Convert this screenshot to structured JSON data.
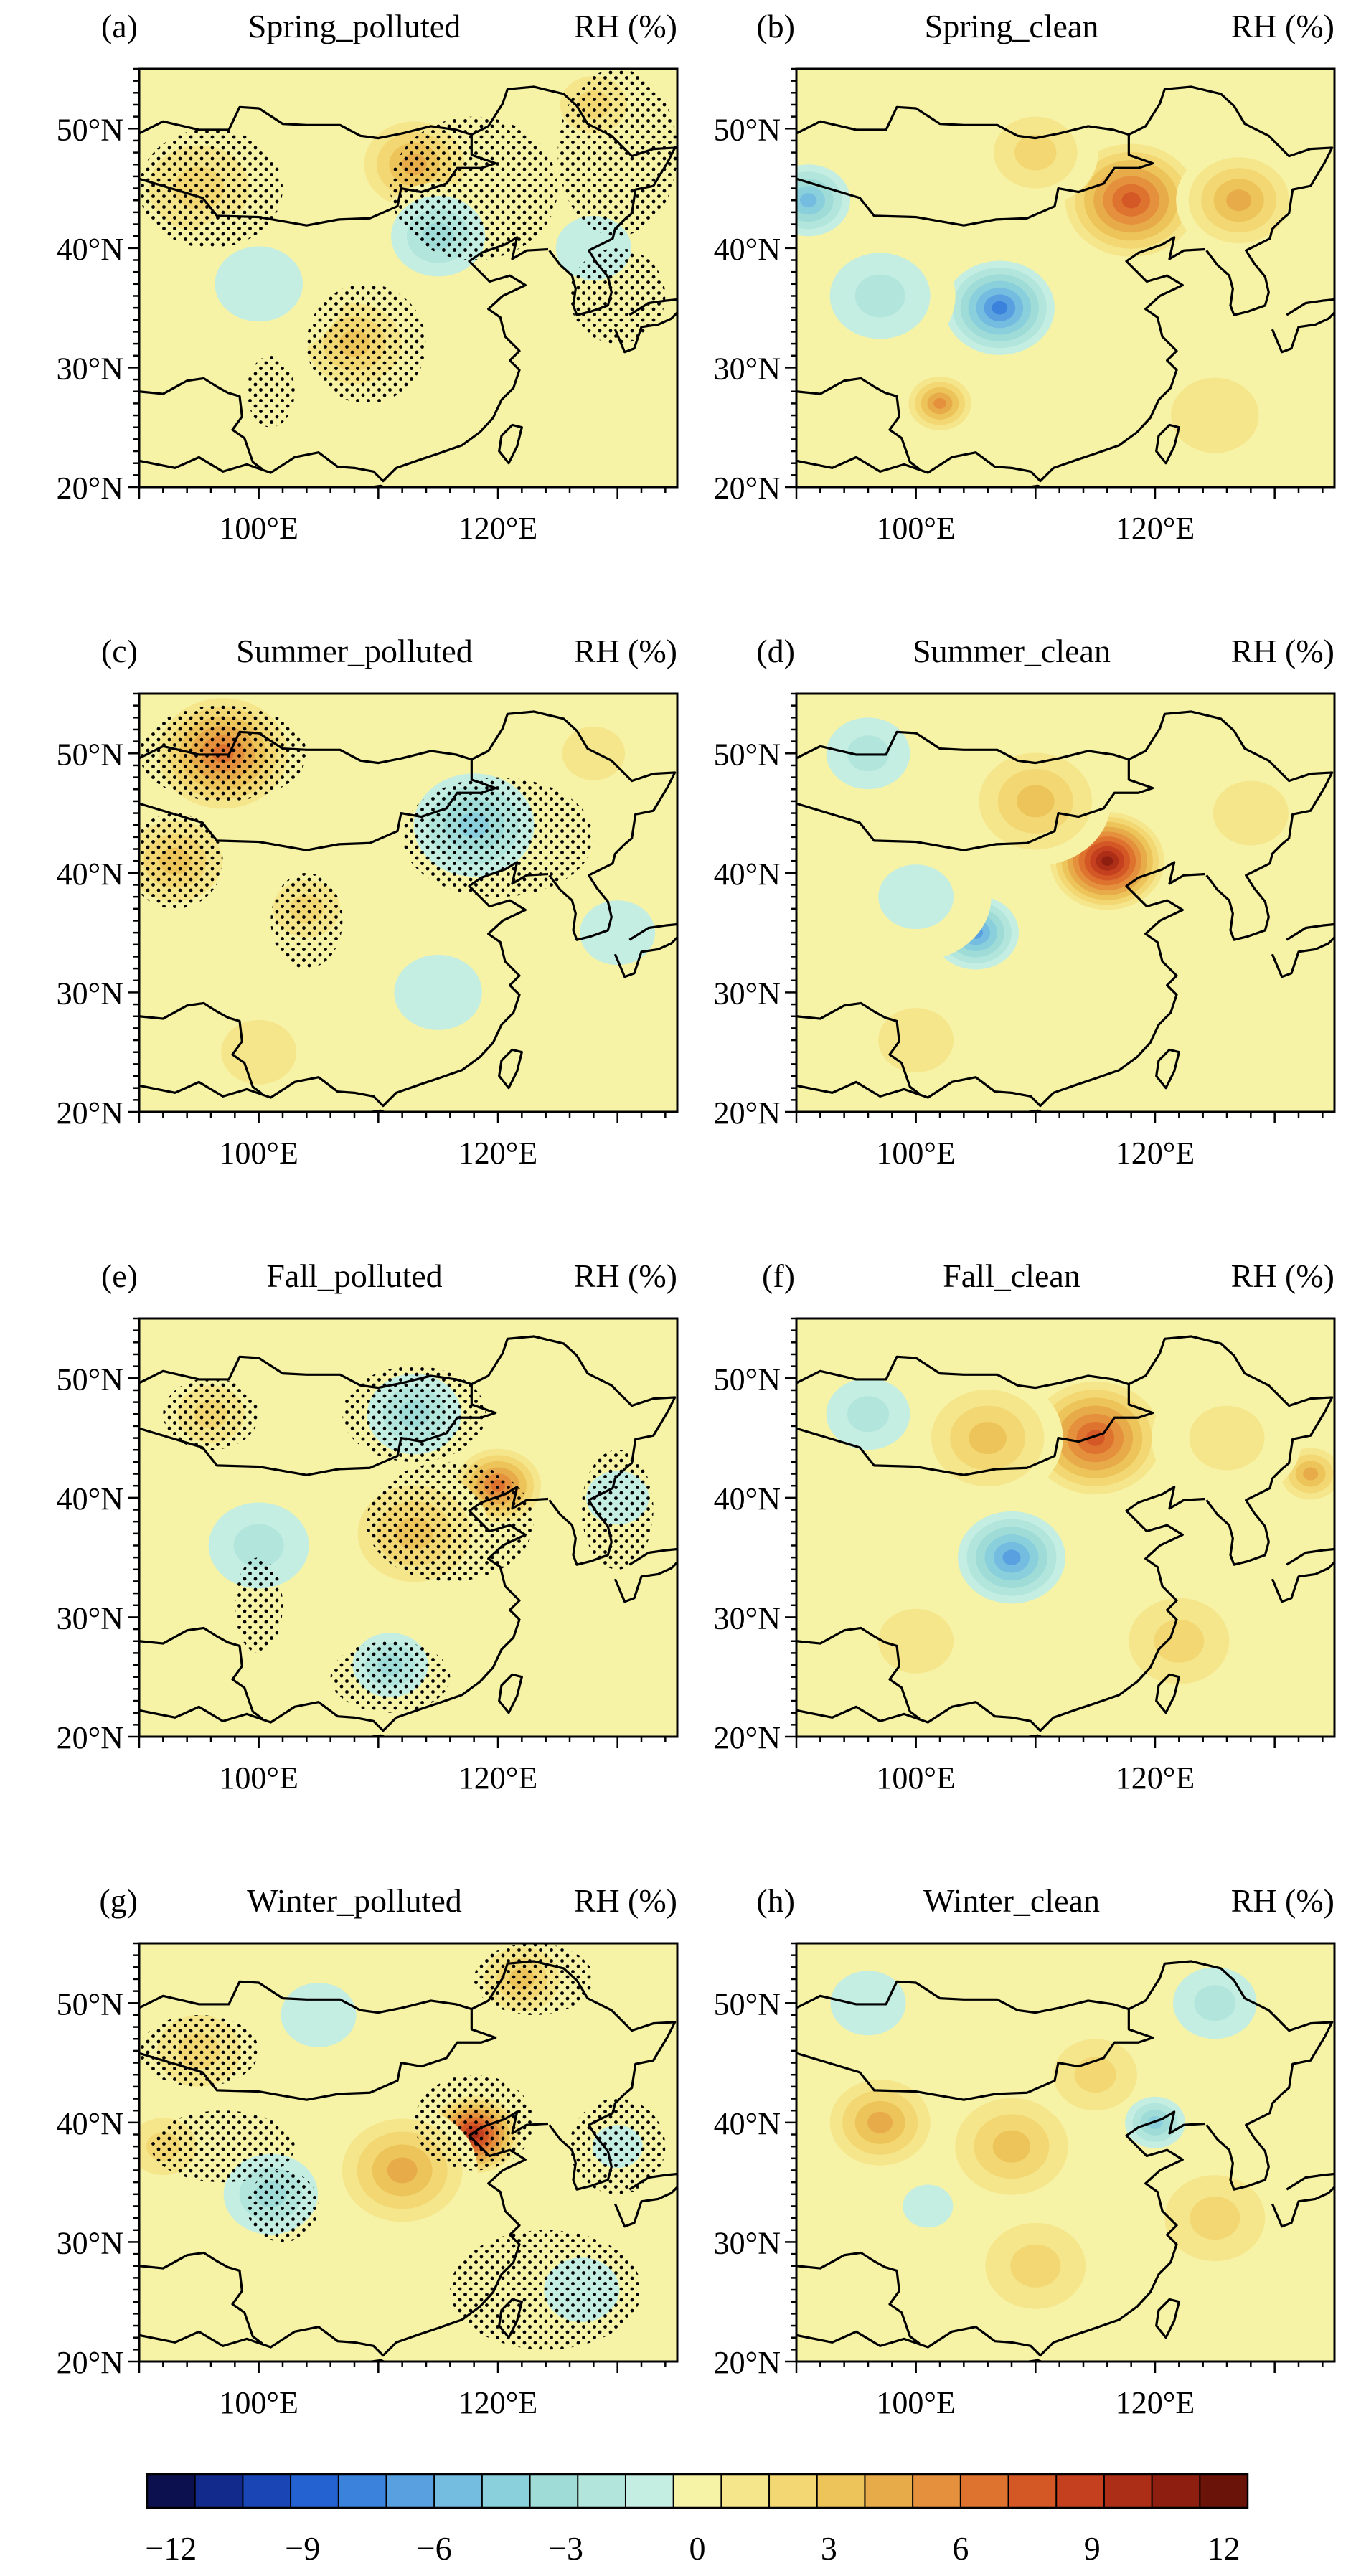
{
  "figure": {
    "variable_label": "RH (%)",
    "x_tick_labels": [
      "100°E",
      "120°E"
    ],
    "y_tick_labels": [
      "50°N",
      "40°N",
      "30°N",
      "20°N"
    ],
    "map_extent": {
      "lon_min": 90,
      "lon_max": 135,
      "lat_min": 20,
      "lat_max": 55
    }
  },
  "panels": [
    {
      "tag": "(a)",
      "title": "Spring_polluted",
      "anomalies": [
        {
          "lon": 113,
          "lat": 47,
          "value": 5,
          "r": 5
        },
        {
          "lon": 95,
          "lat": 45,
          "value": 3,
          "r": 6
        },
        {
          "lon": 108,
          "lat": 32,
          "value": 4,
          "r": 5
        },
        {
          "lon": 115,
          "lat": 41,
          "value": -4,
          "r": 5
        },
        {
          "lon": 100,
          "lat": 37,
          "value": -2,
          "r": 7
        },
        {
          "lon": 128,
          "lat": 40,
          "value": -2,
          "r": 6
        },
        {
          "lon": 125,
          "lat": 26,
          "value": -1,
          "r": 7
        },
        {
          "lon": 128,
          "lat": 52,
          "value": 3,
          "r": 4
        }
      ],
      "stipple": [
        {
          "lon": 96,
          "lat": 45,
          "rx": 6,
          "ry": 5
        },
        {
          "lon": 109,
          "lat": 32,
          "rx": 5,
          "ry": 5
        },
        {
          "lon": 101,
          "lat": 28,
          "rx": 2,
          "ry": 3
        },
        {
          "lon": 118,
          "lat": 45,
          "rx": 7,
          "ry": 6
        },
        {
          "lon": 130,
          "lat": 48,
          "rx": 5,
          "ry": 7
        },
        {
          "lon": 130,
          "lat": 36,
          "rx": 4,
          "ry": 4
        }
      ]
    },
    {
      "tag": "(b)",
      "title": "Spring_clean",
      "anomalies": [
        {
          "lon": 118,
          "lat": 44,
          "value": 8,
          "r": 6
        },
        {
          "lon": 127,
          "lat": 44,
          "value": 5,
          "r": 5
        },
        {
          "lon": 110,
          "lat": 48,
          "value": 3,
          "r": 5
        },
        {
          "lon": 107,
          "lat": 35,
          "value": -8,
          "r": 5
        },
        {
          "lon": 91,
          "lat": 44,
          "value": -6,
          "r": 4
        },
        {
          "lon": 97,
          "lat": 36,
          "value": -3,
          "r": 6
        },
        {
          "lon": 102,
          "lat": 27,
          "value": 6,
          "r": 3
        },
        {
          "lon": 125,
          "lat": 26,
          "value": 2,
          "r": 7
        }
      ],
      "stipple": []
    },
    {
      "tag": "(c)",
      "title": "Summer_polluted",
      "anomalies": [
        {
          "lon": 97,
          "lat": 50,
          "value": 7,
          "r": 6
        },
        {
          "lon": 93,
          "lat": 41,
          "value": 4,
          "r": 5
        },
        {
          "lon": 104,
          "lat": 37,
          "value": 3,
          "r": 4
        },
        {
          "lon": 118,
          "lat": 44,
          "value": -5,
          "r": 6
        },
        {
          "lon": 128,
          "lat": 50,
          "value": 2,
          "r": 5
        },
        {
          "lon": 115,
          "lat": 30,
          "value": -2,
          "r": 7
        },
        {
          "lon": 100,
          "lat": 25,
          "value": 2,
          "r": 6
        },
        {
          "lon": 130,
          "lat": 35,
          "value": -2,
          "r": 6
        }
      ],
      "stipple": [
        {
          "lon": 97,
          "lat": 50,
          "rx": 7,
          "ry": 4
        },
        {
          "lon": 93,
          "lat": 41,
          "rx": 4,
          "ry": 4
        },
        {
          "lon": 104,
          "lat": 36,
          "rx": 3,
          "ry": 4
        },
        {
          "lon": 120,
          "lat": 43,
          "rx": 8,
          "ry": 5
        }
      ]
    },
    {
      "tag": "(d)",
      "title": "Summer_clean",
      "anomalies": [
        {
          "lon": 116,
          "lat": 41,
          "value": 11,
          "r": 5
        },
        {
          "lon": 110,
          "lat": 46,
          "value": 4,
          "r": 6
        },
        {
          "lon": 105,
          "lat": 35,
          "value": -7,
          "r": 4
        },
        {
          "lon": 96,
          "lat": 50,
          "value": -3,
          "r": 5
        },
        {
          "lon": 100,
          "lat": 38,
          "value": -2,
          "r": 6
        },
        {
          "lon": 128,
          "lat": 45,
          "value": 2,
          "r": 6
        },
        {
          "lon": 100,
          "lat": 26,
          "value": 2,
          "r": 6
        }
      ],
      "stipple": []
    },
    {
      "tag": "(e)",
      "title": "Fall_polluted",
      "anomalies": [
        {
          "lon": 120,
          "lat": 41,
          "value": 7,
          "r": 4
        },
        {
          "lon": 113,
          "lat": 37,
          "value": 4,
          "r": 6
        },
        {
          "lon": 96,
          "lat": 47,
          "value": 3,
          "r": 4
        },
        {
          "lon": 113,
          "lat": 47,
          "value": -4,
          "r": 5
        },
        {
          "lon": 100,
          "lat": 36,
          "value": -3,
          "r": 6
        },
        {
          "lon": 111,
          "lat": 26,
          "value": -4,
          "r": 4
        },
        {
          "lon": 130,
          "lat": 40,
          "value": -2,
          "r": 5
        }
      ],
      "stipple": [
        {
          "lon": 96,
          "lat": 47,
          "rx": 4,
          "ry": 3
        },
        {
          "lon": 113,
          "lat": 47,
          "rx": 6,
          "ry": 4
        },
        {
          "lon": 116,
          "lat": 38,
          "rx": 7,
          "ry": 5
        },
        {
          "lon": 100,
          "lat": 31,
          "rx": 2,
          "ry": 4
        },
        {
          "lon": 111,
          "lat": 25,
          "rx": 5,
          "ry": 3
        },
        {
          "lon": 130,
          "lat": 39,
          "rx": 3,
          "ry": 5
        }
      ]
    },
    {
      "tag": "(f)",
      "title": "Fall_clean",
      "anomalies": [
        {
          "lon": 115,
          "lat": 45,
          "value": 8,
          "r": 6
        },
        {
          "lon": 106,
          "lat": 45,
          "value": 4,
          "r": 6
        },
        {
          "lon": 133,
          "lat": 42,
          "value": 5,
          "r": 3
        },
        {
          "lon": 108,
          "lat": 35,
          "value": -7,
          "r": 5
        },
        {
          "lon": 96,
          "lat": 47,
          "value": -3,
          "r": 5
        },
        {
          "lon": 126,
          "lat": 45,
          "value": 2,
          "r": 6
        },
        {
          "lon": 100,
          "lat": 28,
          "value": 2,
          "r": 6
        },
        {
          "lon": 122,
          "lat": 28,
          "value": 3,
          "r": 6
        }
      ],
      "stipple": []
    },
    {
      "tag": "(g)",
      "title": "Winter_polluted",
      "anomalies": [
        {
          "lon": 118,
          "lat": 39,
          "value": 10,
          "r": 4
        },
        {
          "lon": 112,
          "lat": 36,
          "value": 5,
          "r": 6
        },
        {
          "lon": 95,
          "lat": 46,
          "value": 3,
          "r": 5
        },
        {
          "lon": 92,
          "lat": 38,
          "value": 3,
          "r": 4
        },
        {
          "lon": 122,
          "lat": 52,
          "value": 4,
          "r": 4
        },
        {
          "lon": 101,
          "lat": 34,
          "value": -4,
          "r": 5
        },
        {
          "lon": 105,
          "lat": 49,
          "value": -2,
          "r": 6
        },
        {
          "lon": 127,
          "lat": 26,
          "value": -2,
          "r": 6
        },
        {
          "lon": 130,
          "lat": 38,
          "value": -2,
          "r": 4
        }
      ],
      "stipple": [
        {
          "lon": 95,
          "lat": 46,
          "rx": 5,
          "ry": 3
        },
        {
          "lon": 97,
          "lat": 38,
          "rx": 6,
          "ry": 3
        },
        {
          "lon": 102,
          "lat": 33,
          "rx": 3,
          "ry": 3
        },
        {
          "lon": 118,
          "lat": 40,
          "rx": 5,
          "ry": 4
        },
        {
          "lon": 123,
          "lat": 52,
          "rx": 5,
          "ry": 3
        },
        {
          "lon": 130,
          "lat": 38,
          "rx": 4,
          "ry": 4
        },
        {
          "lon": 124,
          "lat": 26,
          "rx": 8,
          "ry": 5
        }
      ]
    },
    {
      "tag": "(h)",
      "title": "Winter_clean",
      "anomalies": [
        {
          "lon": 97,
          "lat": 40,
          "value": 5,
          "r": 5
        },
        {
          "lon": 108,
          "lat": 38,
          "value": 4,
          "r": 6
        },
        {
          "lon": 115,
          "lat": 44,
          "value": 3,
          "r": 5
        },
        {
          "lon": 120,
          "lat": 40,
          "value": -5,
          "r": 3
        },
        {
          "lon": 125,
          "lat": 50,
          "value": -3,
          "r": 5
        },
        {
          "lon": 96,
          "lat": 50,
          "value": -2,
          "r": 6
        },
        {
          "lon": 101,
          "lat": 33,
          "value": -2,
          "r": 4
        },
        {
          "lon": 125,
          "lat": 32,
          "value": 3,
          "r": 6
        },
        {
          "lon": 110,
          "lat": 28,
          "value": 3,
          "r": 6
        }
      ],
      "stipple": []
    }
  ],
  "colorbar": {
    "min": -12,
    "max": 12,
    "step": 1,
    "tick_labels": [
      "−12",
      "−9",
      "−6",
      "−3",
      "0",
      "3",
      "6",
      "9",
      "12"
    ],
    "tick_values": [
      -12,
      -9,
      -6,
      -3,
      0,
      3,
      6,
      9,
      12
    ],
    "colors": [
      "#0c104e",
      "#122a8c",
      "#1a45b4",
      "#2462d2",
      "#3a82dc",
      "#58a0e0",
      "#74bce0",
      "#8acfdc",
      "#9fdcd8",
      "#b2e6dc",
      "#c4eee2",
      "#f6f2a6",
      "#f5e68c",
      "#f2d772",
      "#edc45a",
      "#e8ab4a",
      "#e4903c",
      "#de7330",
      "#d45826",
      "#c4401e",
      "#ad2e16",
      "#8e1f10",
      "#6a1309"
    ]
  }
}
